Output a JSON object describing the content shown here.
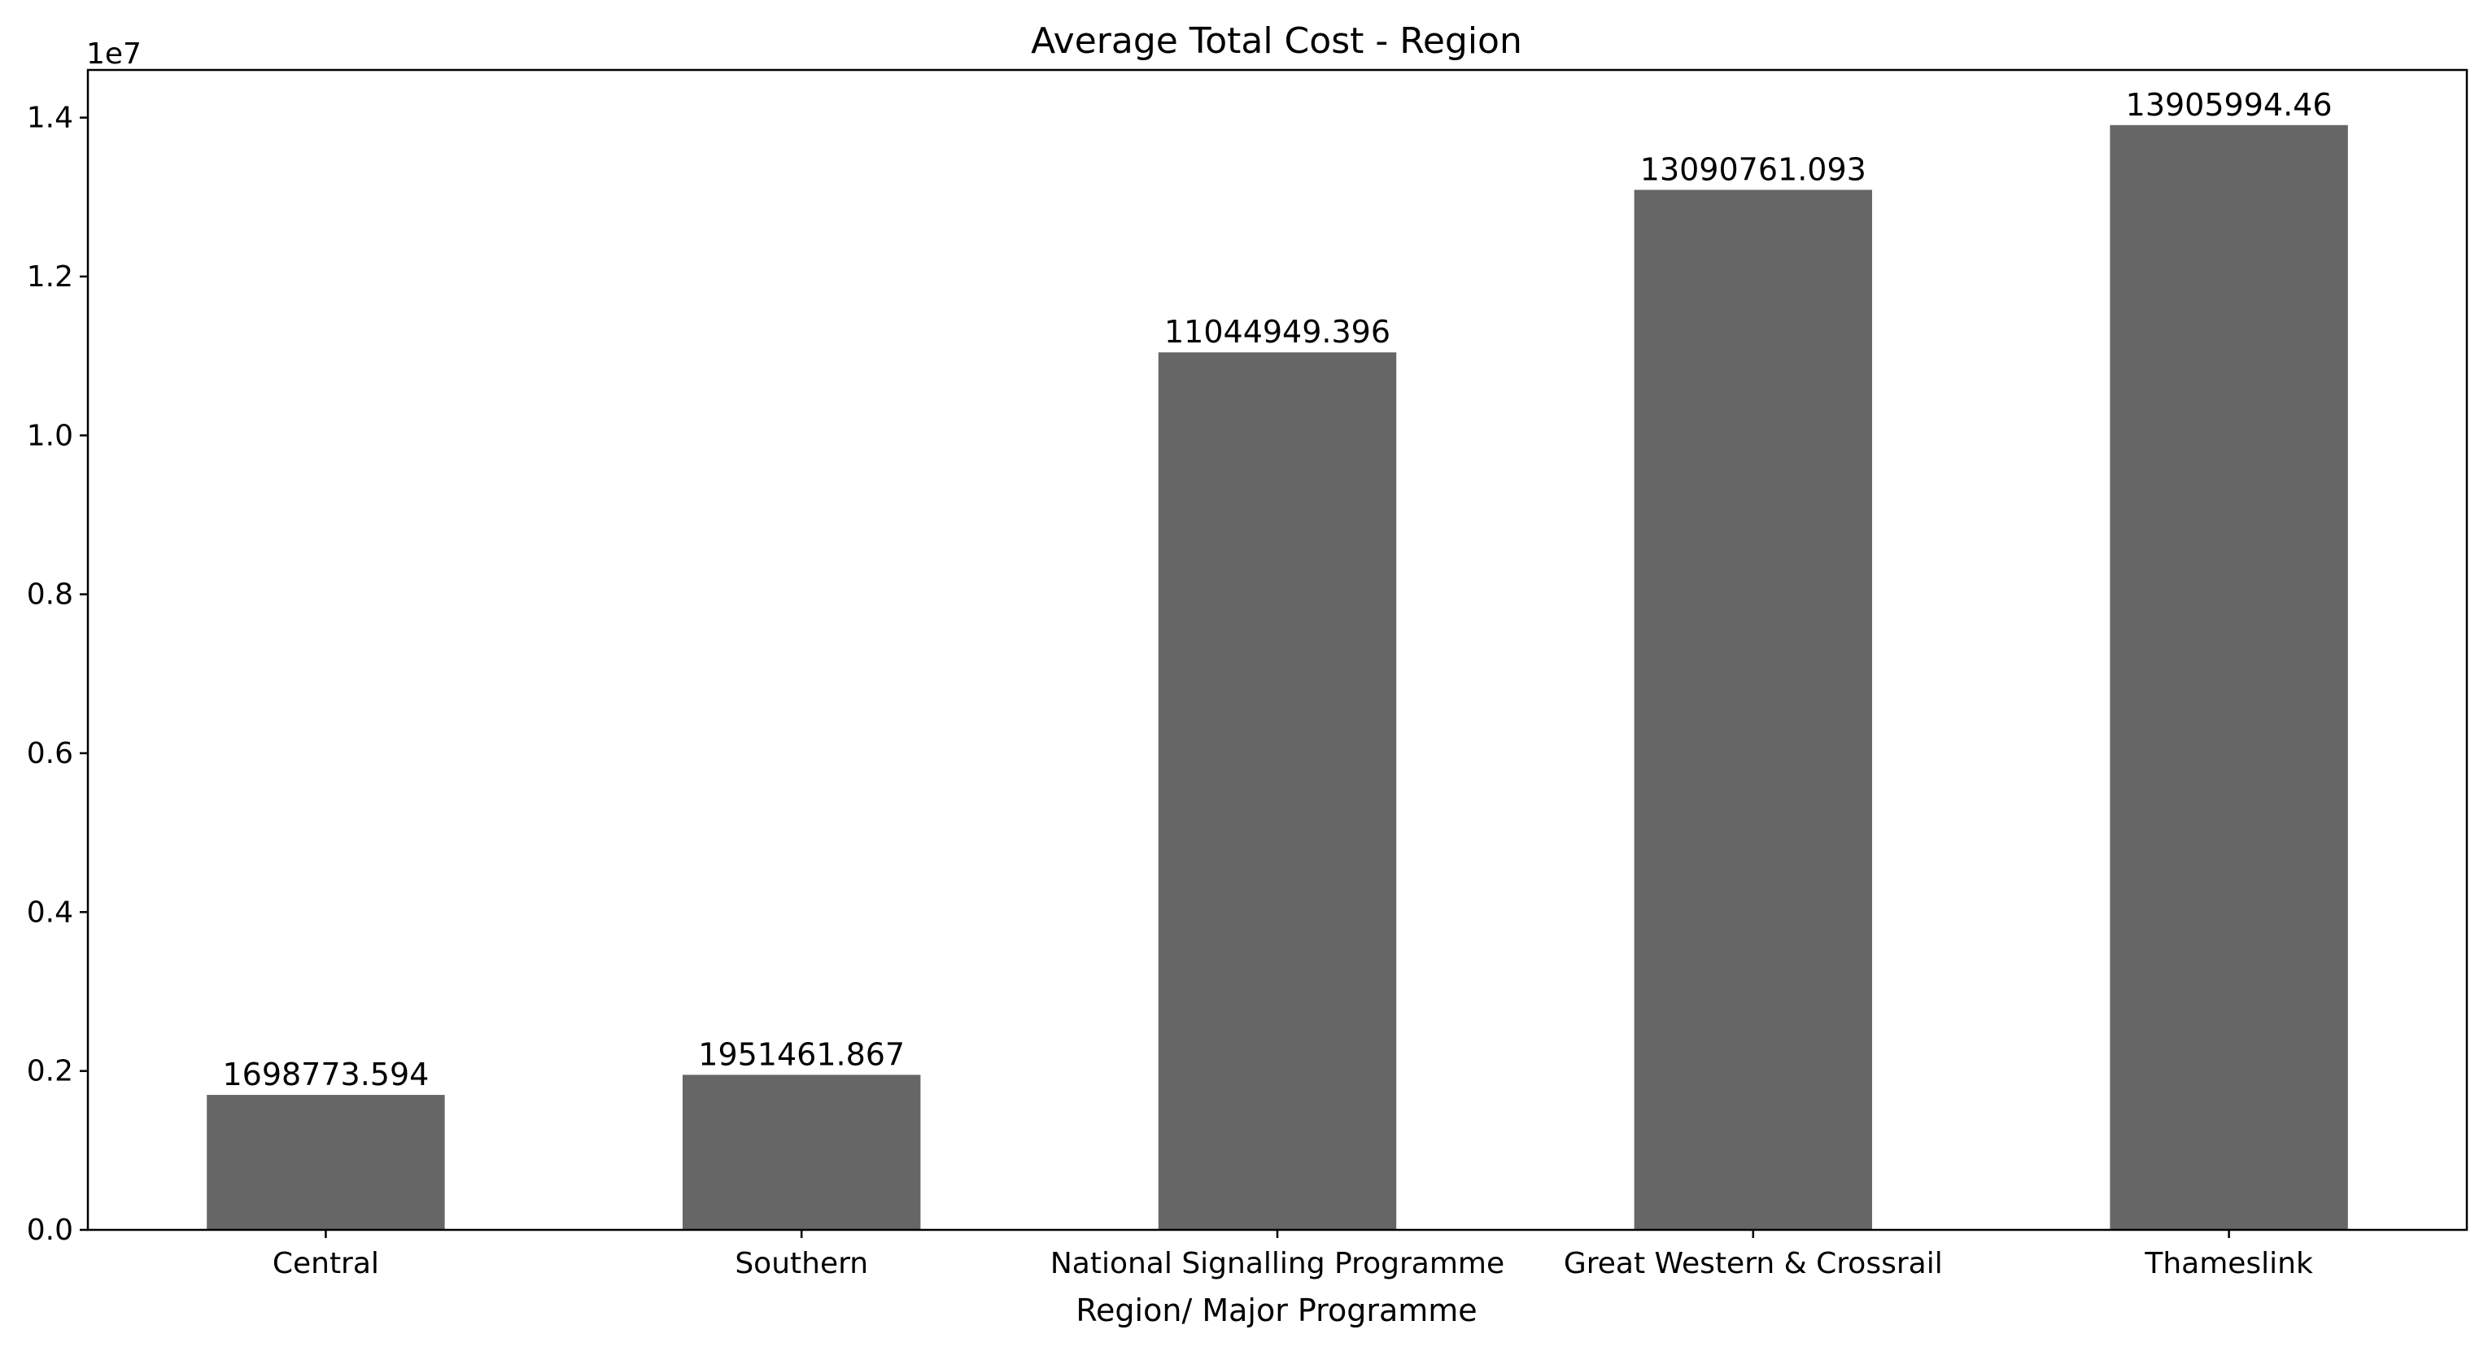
{
  "chart_data": {
    "type": "bar",
    "title": "Average Total Cost - Region",
    "xlabel": "Region/ Major Programme",
    "ylabel": "",
    "y_offset_label": "1e7",
    "y_scale": 10000000,
    "ylim": [
      0,
      14600000
    ],
    "yticks": [
      0,
      2000000,
      4000000,
      6000000,
      8000000,
      10000000,
      12000000,
      14000000
    ],
    "ytick_labels": [
      "0.0",
      "0.2",
      "0.4",
      "0.6",
      "0.8",
      "1.0",
      "1.2",
      "1.4"
    ],
    "categories": [
      "Central",
      "Southern",
      "National Signalling Programme",
      "Great Western & Crossrail",
      "Thameslink"
    ],
    "values": [
      1698773.594,
      1951461.867,
      11044949.396,
      13090761.093,
      13905994.46
    ],
    "value_labels": [
      "1698773.594",
      "1951461.867",
      "11044949.396",
      "13090761.093",
      "13905994.46"
    ],
    "bar_color": "#666666",
    "grid": false,
    "legend": "none"
  }
}
